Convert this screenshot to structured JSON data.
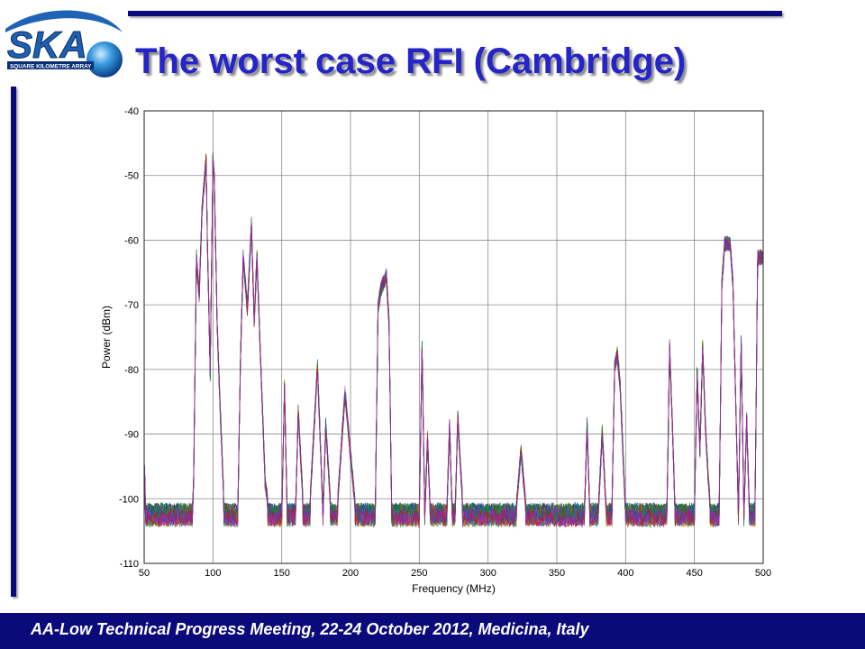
{
  "slide": {
    "title": "The worst case RFI (Cambridge)",
    "footer": "AA-Low Technical Progress Meeting, 22-24 October 2012, Medicina, Italy"
  },
  "logo": {
    "text": "SKA",
    "subtitle": "SQUARE KILOMETRE ARRAY"
  },
  "colors": {
    "title": "#2424c8",
    "bar": "#0a0a7a",
    "footer_text": "#ffffff"
  },
  "chart_data": {
    "type": "line",
    "title": "",
    "xlabel": "Frequency (MHz)",
    "ylabel": "Power (dBm)",
    "xlim": [
      50,
      500
    ],
    "ylim": [
      -110,
      -40
    ],
    "xticks": [
      50,
      100,
      150,
      200,
      250,
      300,
      350,
      400,
      450,
      500
    ],
    "yticks": [
      -40,
      -50,
      -60,
      -70,
      -80,
      -90,
      -100,
      -110
    ],
    "grid": true,
    "legend": "none",
    "series_count": 40,
    "noise_floor": [
      -104,
      -101
    ],
    "envelope": {
      "x": [
        50,
        51,
        52,
        85,
        86,
        88,
        90,
        92,
        95,
        96,
        98,
        100,
        101,
        103,
        105,
        108,
        110,
        112,
        118,
        120,
        122,
        125,
        128,
        130,
        132,
        135,
        138,
        140,
        142,
        150,
        152,
        154,
        160,
        162,
        166,
        170,
        176,
        180,
        182,
        186,
        190,
        196,
        204,
        208,
        212,
        218,
        220,
        222,
        224,
        226,
        228,
        230,
        238,
        250,
        252,
        254,
        256,
        258,
        264,
        270,
        272,
        274,
        276,
        278,
        282,
        290,
        320,
        324,
        328,
        360,
        370,
        372,
        374,
        380,
        383,
        386,
        390,
        392,
        394,
        396,
        400,
        430,
        432,
        434,
        436,
        438,
        440,
        450,
        452,
        454,
        456,
        458,
        460,
        462,
        468,
        470,
        472,
        474,
        476,
        478,
        482,
        484,
        486,
        488,
        490,
        494,
        496,
        498,
        500
      ],
      "y": [
        -94,
        -100,
        -103,
        -103,
        -96,
        -62,
        -68,
        -55,
        -47,
        -60,
        -80,
        -47,
        -50,
        -72,
        -84,
        -100,
        -103,
        -102,
        -103,
        -78,
        -62,
        -70,
        -57,
        -72,
        -62,
        -80,
        -97,
        -100,
        -103,
        -103,
        -82,
        -102,
        -102,
        -86,
        -102,
        -102,
        -79,
        -102,
        -88,
        -102,
        -102,
        -83,
        -102,
        -102,
        -102,
        -102,
        -70,
        -67,
        -66,
        -65,
        -72,
        -102,
        -102,
        -102,
        -76,
        -102,
        -90,
        -102,
        -102,
        -102,
        -88,
        -102,
        -102,
        -87,
        -102,
        -102,
        -102,
        -92,
        -102,
        -102,
        -102,
        -88,
        -102,
        -102,
        -89,
        -102,
        -102,
        -79,
        -77,
        -82,
        -102,
        -102,
        -76,
        -88,
        -102,
        -102,
        -102,
        -102,
        -80,
        -92,
        -76,
        -88,
        -96,
        -102,
        -102,
        -66,
        -60,
        -60,
        -60,
        -66,
        -102,
        -75,
        -102,
        -87,
        -102,
        -102,
        -62,
        -62,
        -62
      ]
    }
  }
}
